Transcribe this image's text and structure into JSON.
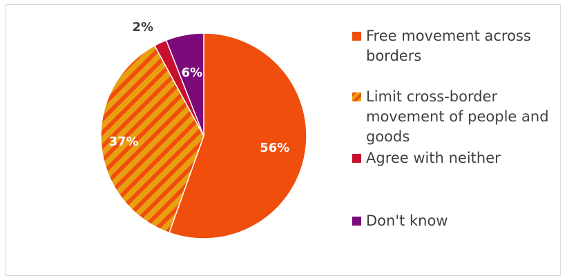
{
  "chart_data": {
    "type": "pie",
    "slices": [
      {
        "label": "Free movement across borders",
        "value": 56,
        "data_label": "56%",
        "color": "#f04e0c",
        "pattern": "solid"
      },
      {
        "label": "Limit cross-border movement of people and goods",
        "value": 37,
        "data_label": "37%",
        "color": "#e8a010",
        "stripe_color": "#f04e0c",
        "pattern": "diagonal-stripes"
      },
      {
        "label": "Agree with neither",
        "value": 2,
        "data_label": "2%",
        "color": "#c8102e",
        "pattern": "solid"
      },
      {
        "label": "Don't know",
        "value": 6,
        "data_label": "6%",
        "color": "#7b0a7b",
        "pattern": "solid"
      }
    ],
    "legend_position": "right",
    "start_angle_deg": 0,
    "direction": "clockwise"
  }
}
